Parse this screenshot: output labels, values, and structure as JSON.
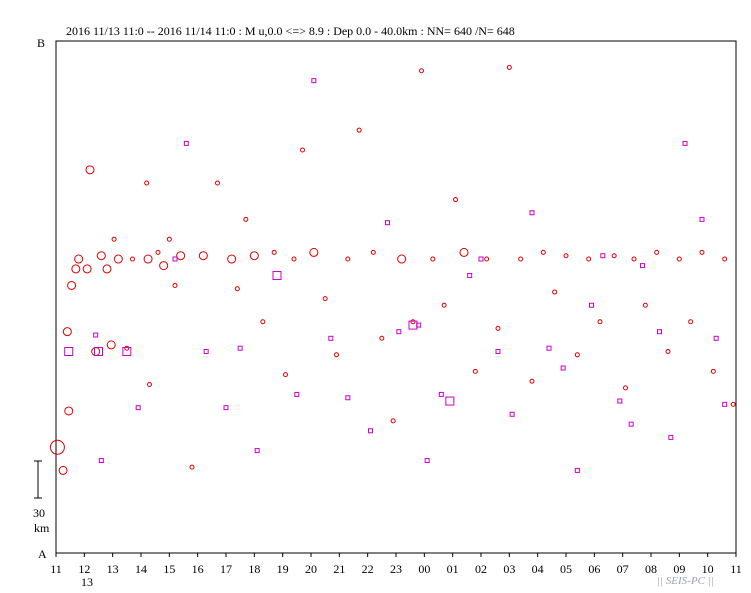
{
  "header": "2016 11/13 11:0 -- 2016 11/14 11:0  : M u,0.0 <=> 8.9   : Dep 0.0 - 40.0km :  NN= 640 /N= 648",
  "axis": {
    "top_label": "B",
    "bottom_label": "A",
    "x_ticks": [
      "11",
      "12",
      "13",
      "14",
      "15",
      "16",
      "17",
      "18",
      "19",
      "20",
      "21",
      "22",
      "23",
      "00",
      "01",
      "02",
      "03",
      "04",
      "05",
      "06",
      "07",
      "08",
      "09",
      "10",
      "11"
    ],
    "date_label": "13",
    "scale_value": "30",
    "scale_unit": "km"
  },
  "footer": "|| SEIS-PC ||",
  "colors": {
    "circle": "#dd0000",
    "square": "#cc00cc"
  },
  "chart_data": {
    "type": "scatter",
    "title": "2016 11/13 11:0 -- 2016 11/14 11:0  : M u,0.0 <=> 8.9   : Dep 0.0 - 40.0km :  NN= 640 /N= 648",
    "xlabel": "",
    "ylabel": "",
    "x_unit": "hour of day (starting 11 on 11/13, ending 11 on 11/14)",
    "xlim": [
      0,
      24
    ],
    "ylim_km": [
      0,
      155
    ],
    "y_note": "distance along section A (bottom) to B (top), km",
    "markers": [
      "circle",
      "square"
    ],
    "series": [
      {
        "marker": "circle",
        "points": [
          [
            0.05,
            32,
            3
          ],
          [
            0.25,
            25,
            2
          ],
          [
            0.4,
            67,
            2
          ],
          [
            0.45,
            43,
            2
          ],
          [
            0.55,
            81,
            2
          ],
          [
            0.7,
            86,
            2
          ],
          [
            0.8,
            89,
            2
          ],
          [
            1.1,
            86,
            2
          ],
          [
            1.2,
            116,
            2
          ],
          [
            1.4,
            61,
            2
          ],
          [
            1.6,
            90,
            2
          ],
          [
            1.8,
            86,
            2
          ],
          [
            1.95,
            63,
            2
          ],
          [
            2.05,
            95,
            1
          ],
          [
            2.2,
            89,
            2
          ],
          [
            2.5,
            62,
            1
          ],
          [
            2.7,
            89,
            1
          ],
          [
            3.2,
            112,
            1
          ],
          [
            3.25,
            89,
            2
          ],
          [
            3.3,
            51,
            1
          ],
          [
            3.6,
            91,
            1
          ],
          [
            3.8,
            87,
            2
          ],
          [
            4.0,
            95,
            1
          ],
          [
            4.2,
            81,
            1
          ],
          [
            4.4,
            90,
            2
          ],
          [
            4.8,
            26,
            1
          ],
          [
            5.2,
            90,
            2
          ],
          [
            5.7,
            112,
            1
          ],
          [
            6.2,
            89,
            2
          ],
          [
            6.4,
            80,
            1
          ],
          [
            6.7,
            101,
            1
          ],
          [
            7.0,
            90,
            2
          ],
          [
            7.3,
            70,
            1
          ],
          [
            7.7,
            91,
            1
          ],
          [
            8.1,
            54,
            1
          ],
          [
            8.4,
            89,
            1
          ],
          [
            8.7,
            122,
            1
          ],
          [
            9.1,
            91,
            2
          ],
          [
            9.5,
            77,
            1
          ],
          [
            9.9,
            60,
            1
          ],
          [
            10.3,
            89,
            1
          ],
          [
            10.7,
            128,
            1
          ],
          [
            11.2,
            91,
            1
          ],
          [
            11.5,
            65,
            1
          ],
          [
            11.9,
            40,
            1
          ],
          [
            12.2,
            89,
            2
          ],
          [
            12.6,
            70,
            1
          ],
          [
            12.9,
            146,
            1
          ],
          [
            13.3,
            89,
            1
          ],
          [
            13.7,
            75,
            1
          ],
          [
            14.1,
            107,
            1
          ],
          [
            14.4,
            91,
            2
          ],
          [
            14.8,
            55,
            1
          ],
          [
            15.2,
            89,
            1
          ],
          [
            15.6,
            68,
            1
          ],
          [
            16.0,
            147,
            1
          ],
          [
            16.4,
            89,
            1
          ],
          [
            16.8,
            52,
            1
          ],
          [
            17.2,
            91,
            1
          ],
          [
            17.6,
            79,
            1
          ],
          [
            18.0,
            90,
            1
          ],
          [
            18.4,
            60,
            1
          ],
          [
            18.8,
            89,
            1
          ],
          [
            19.2,
            70,
            1
          ],
          [
            19.7,
            90,
            1
          ],
          [
            20.1,
            50,
            1
          ],
          [
            20.4,
            89,
            1
          ],
          [
            20.8,
            75,
            1
          ],
          [
            21.2,
            91,
            1
          ],
          [
            21.6,
            61,
            1
          ],
          [
            22.0,
            89,
            1
          ],
          [
            22.4,
            70,
            1
          ],
          [
            22.8,
            91,
            1
          ],
          [
            23.2,
            55,
            1
          ],
          [
            23.6,
            89,
            1
          ],
          [
            23.9,
            45,
            1
          ]
        ]
      },
      {
        "marker": "square",
        "points": [
          [
            0.45,
            61,
            2
          ],
          [
            1.4,
            66,
            1
          ],
          [
            1.5,
            61,
            2
          ],
          [
            1.6,
            28,
            1
          ],
          [
            2.5,
            61,
            2
          ],
          [
            2.9,
            44,
            1
          ],
          [
            4.2,
            89,
            1
          ],
          [
            4.6,
            124,
            1
          ],
          [
            5.3,
            61,
            1
          ],
          [
            6.0,
            44,
            1
          ],
          [
            6.5,
            62,
            1
          ],
          [
            7.1,
            31,
            1
          ],
          [
            7.8,
            84,
            2
          ],
          [
            8.5,
            48,
            1
          ],
          [
            9.1,
            143,
            1
          ],
          [
            9.7,
            65,
            1
          ],
          [
            10.3,
            47,
            1
          ],
          [
            11.1,
            37,
            1
          ],
          [
            11.7,
            100,
            1
          ],
          [
            12.1,
            67,
            1
          ],
          [
            12.6,
            69,
            2
          ],
          [
            12.8,
            69,
            1
          ],
          [
            13.1,
            28,
            1
          ],
          [
            13.6,
            48,
            1
          ],
          [
            13.9,
            46,
            2
          ],
          [
            14.6,
            84,
            1
          ],
          [
            15.0,
            89,
            1
          ],
          [
            15.6,
            61,
            1
          ],
          [
            16.1,
            42,
            1
          ],
          [
            16.8,
            103,
            1
          ],
          [
            17.4,
            62,
            1
          ],
          [
            17.9,
            56,
            1
          ],
          [
            18.4,
            25,
            1
          ],
          [
            18.9,
            75,
            1
          ],
          [
            19.3,
            90,
            1
          ],
          [
            19.9,
            46,
            1
          ],
          [
            20.3,
            39,
            1
          ],
          [
            20.7,
            87,
            1
          ],
          [
            21.3,
            67,
            1
          ],
          [
            21.7,
            35,
            1
          ],
          [
            22.2,
            124,
            1
          ],
          [
            22.8,
            101,
            1
          ],
          [
            23.3,
            65,
            1
          ],
          [
            23.6,
            45,
            1
          ]
        ]
      }
    ]
  }
}
